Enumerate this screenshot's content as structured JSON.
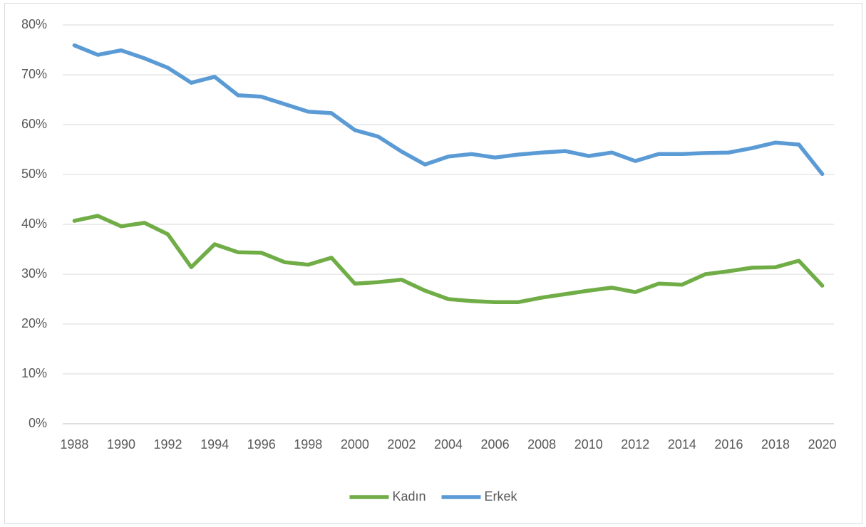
{
  "chart_data": {
    "type": "line",
    "x": [
      1988,
      1989,
      1990,
      1991,
      1992,
      1993,
      1994,
      1995,
      1996,
      1997,
      1998,
      1999,
      2000,
      2001,
      2002,
      2003,
      2004,
      2005,
      2006,
      2007,
      2008,
      2009,
      2010,
      2011,
      2012,
      2013,
      2014,
      2015,
      2016,
      2017,
      2018,
      2019,
      2020
    ],
    "xlim": [
      1987.5,
      2020.5
    ],
    "xticks": [
      1988,
      1990,
      1992,
      1994,
      1996,
      1998,
      2000,
      2002,
      2004,
      2006,
      2008,
      2010,
      2012,
      2014,
      2016,
      2018,
      2020
    ],
    "ylim": [
      0,
      80
    ],
    "yticks": [
      {
        "value": 0,
        "label": "0%"
      },
      {
        "value": 10,
        "label": "10%"
      },
      {
        "value": 20,
        "label": "20%"
      },
      {
        "value": 30,
        "label": "30%"
      },
      {
        "value": 40,
        "label": "40%"
      },
      {
        "value": 50,
        "label": "50%"
      },
      {
        "value": 60,
        "label": "60%"
      },
      {
        "value": 70,
        "label": "70%"
      },
      {
        "value": 80,
        "label": "80%"
      }
    ],
    "grid": true,
    "legend": "bottom",
    "series": [
      {
        "name": "Kadın",
        "color": "#70ad47",
        "values": [
          40.7,
          41.7,
          39.6,
          40.3,
          38.0,
          31.4,
          36.0,
          34.4,
          34.3,
          32.4,
          31.9,
          33.3,
          28.1,
          28.4,
          28.9,
          26.7,
          25.0,
          24.6,
          24.4,
          24.4,
          25.3,
          26.0,
          26.7,
          27.3,
          26.4,
          28.1,
          27.9,
          30.0,
          30.6,
          31.3,
          31.4,
          32.7,
          27.7
        ]
      },
      {
        "name": "Erkek",
        "color": "#5b9bd5",
        "values": [
          75.9,
          74.0,
          74.9,
          73.3,
          71.4,
          68.4,
          69.6,
          65.9,
          65.6,
          64.1,
          62.6,
          62.3,
          58.9,
          57.6,
          54.6,
          52.0,
          53.6,
          54.1,
          53.4,
          54.0,
          54.4,
          54.7,
          53.7,
          54.4,
          52.7,
          54.1,
          54.1,
          54.3,
          54.4,
          55.3,
          56.4,
          56.0,
          50.1
        ]
      }
    ]
  }
}
